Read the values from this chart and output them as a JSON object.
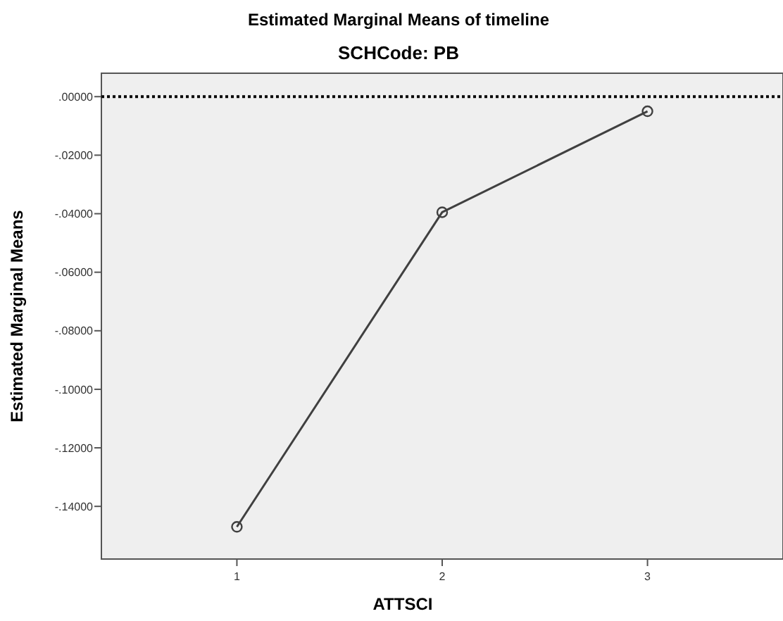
{
  "chart_data": {
    "type": "line",
    "title": "Estimated Marginal Means of timeline",
    "subtitle": "SCHCode: PB",
    "xlabel": "ATTSCI",
    "ylabel": "Estimated Marginal Means",
    "categories": [
      "1",
      "2",
      "3"
    ],
    "series": [
      {
        "color": "#404040",
        "values": [
          -0.147,
          -0.0395,
          -0.005
        ]
      }
    ],
    "ylim": [
      -0.158,
      0.008
    ],
    "yticks": [
      {
        "value": 0,
        "label": ".00000"
      },
      {
        "value": -0.02,
        "label": "-.02000"
      },
      {
        "value": -0.04,
        "label": "-.04000"
      },
      {
        "value": -0.06,
        "label": "-.06000"
      },
      {
        "value": -0.08,
        "label": "-.08000"
      },
      {
        "value": -0.1,
        "label": "-.10000"
      },
      {
        "value": -0.12,
        "label": "-.12000"
      },
      {
        "value": -0.14,
        "label": "-.14000"
      }
    ],
    "ref_lines": [
      {
        "axis": "y",
        "value": 0,
        "color": "#000000",
        "line_style": "dotted"
      }
    ],
    "marker": "circle",
    "line_style": "solid",
    "grid": false
  }
}
